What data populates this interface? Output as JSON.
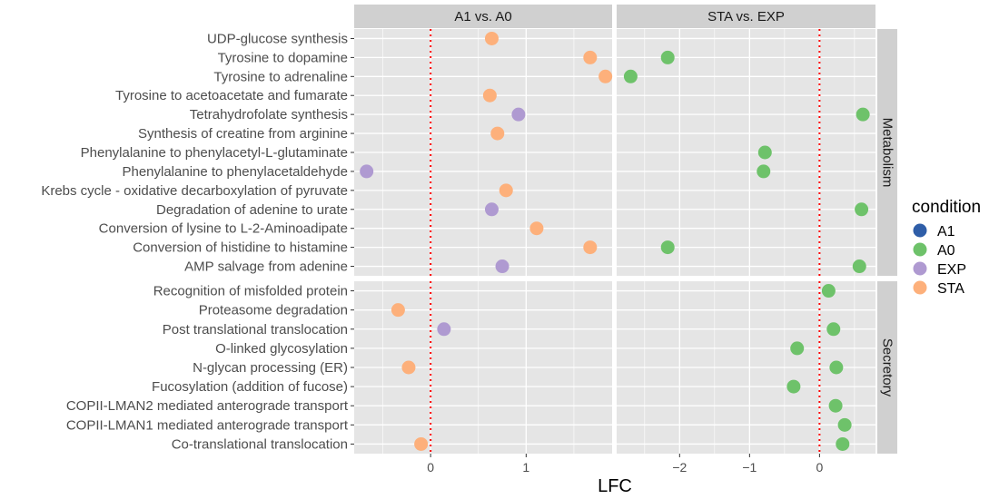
{
  "chart_data": {
    "type": "scatter",
    "xlabel": "LFC",
    "facet_columns": [
      "A1 vs. A0",
      "STA vs. EXP"
    ],
    "facet_rows": [
      "Metabolism",
      "Secretory"
    ],
    "x_ticks": [
      [
        0,
        1
      ],
      [
        -2,
        -1,
        0
      ]
    ],
    "x_ranges": [
      [
        -0.8,
        1.9
      ],
      [
        -2.9,
        0.8
      ]
    ],
    "reference_line_x": 0,
    "grid": true,
    "legend": {
      "title": "condition",
      "position": "right",
      "entries": [
        {
          "name": "A1",
          "color": "#2f5ea8"
        },
        {
          "name": "A0",
          "color": "#6ec26a"
        },
        {
          "name": "EXP",
          "color": "#af9ad1"
        },
        {
          "name": "STA",
          "color": "#fdb07b"
        }
      ]
    },
    "rows": [
      {
        "facet": "Metabolism",
        "categories": [
          "UDP-glucose synthesis",
          "Tyrosine to dopamine",
          "Tyrosine to adrenaline",
          "Tyrosine to acetoacetate and fumarate",
          "Tetrahydrofolate synthesis",
          "Synthesis of creatine from arginine",
          "Phenylalanine to phenylacetyl-L-glutaminate",
          "Phenylalanine to phenylacetaldehyde",
          "Krebs cycle - oxidative decarboxylation of pyruvate",
          "Degradation of adenine to urate",
          "Conversion of lysine to L-2-Aminoadipate",
          "Conversion of histidine to histamine",
          "AMP salvage from adenine"
        ],
        "points": [
          {
            "col": 0,
            "y": "UDP-glucose synthesis",
            "x": 0.64,
            "condition": "STA"
          },
          {
            "col": 0,
            "y": "Tyrosine to dopamine",
            "x": 1.67,
            "condition": "STA"
          },
          {
            "col": 0,
            "y": "Tyrosine to adrenaline",
            "x": 1.83,
            "condition": "STA"
          },
          {
            "col": 0,
            "y": "Tyrosine to acetoacetate and fumarate",
            "x": 0.62,
            "condition": "STA"
          },
          {
            "col": 0,
            "y": "Tetrahydrofolate synthesis",
            "x": 0.92,
            "condition": "EXP"
          },
          {
            "col": 0,
            "y": "Synthesis of creatine from arginine",
            "x": 0.7,
            "condition": "STA"
          },
          {
            "col": 0,
            "y": "Phenylalanine to phenylacetaldehyde",
            "x": -0.67,
            "condition": "EXP"
          },
          {
            "col": 0,
            "y": "Krebs cycle - oxidative decarboxylation of pyruvate",
            "x": 0.79,
            "condition": "STA"
          },
          {
            "col": 0,
            "y": "Degradation of adenine to urate",
            "x": 0.64,
            "condition": "EXP"
          },
          {
            "col": 0,
            "y": "Conversion of lysine to L-2-Aminoadipate",
            "x": 1.11,
            "condition": "STA"
          },
          {
            "col": 0,
            "y": "Conversion of histidine to histamine",
            "x": 1.67,
            "condition": "STA"
          },
          {
            "col": 0,
            "y": "AMP salvage from adenine",
            "x": 0.75,
            "condition": "EXP"
          },
          {
            "col": 1,
            "y": "Tyrosine to dopamine",
            "x": -2.17,
            "condition": "A0"
          },
          {
            "col": 1,
            "y": "Tyrosine to adrenaline",
            "x": -2.7,
            "condition": "A0"
          },
          {
            "col": 1,
            "y": "Tetrahydrofolate synthesis",
            "x": 0.62,
            "condition": "A0"
          },
          {
            "col": 1,
            "y": "Phenylalanine to phenylacetyl-L-glutaminate",
            "x": -0.78,
            "condition": "A0"
          },
          {
            "col": 1,
            "y": "Phenylalanine to phenylacetaldehyde",
            "x": -0.8,
            "condition": "A0"
          },
          {
            "col": 1,
            "y": "Degradation of adenine to urate",
            "x": 0.6,
            "condition": "A0"
          },
          {
            "col": 1,
            "y": "Conversion of histidine to histamine",
            "x": -2.17,
            "condition": "A0"
          },
          {
            "col": 1,
            "y": "AMP salvage from adenine",
            "x": 0.57,
            "condition": "A0"
          }
        ]
      },
      {
        "facet": "Secretory",
        "categories": [
          "Recognition of misfolded protein",
          "Proteasome degradation",
          "Post translational translocation",
          "O-linked glycosylation",
          "N-glycan processing (ER)",
          "Fucosylation (addition of fucose)",
          "COPII-LMAN2 mediated anterograde transport",
          "COPII-LMAN1 mediated anterograde transport",
          "Co-translational translocation"
        ],
        "points": [
          {
            "col": 0,
            "y": "Proteasome degradation",
            "x": -0.34,
            "condition": "STA"
          },
          {
            "col": 0,
            "y": "Post translational translocation",
            "x": 0.14,
            "condition": "EXP"
          },
          {
            "col": 0,
            "y": "N-glycan processing (ER)",
            "x": -0.23,
            "condition": "STA"
          },
          {
            "col": 0,
            "y": "Co-translational translocation",
            "x": -0.1,
            "condition": "STA"
          },
          {
            "col": 1,
            "y": "Recognition of misfolded protein",
            "x": 0.13,
            "condition": "A0"
          },
          {
            "col": 1,
            "y": "Post translational translocation",
            "x": 0.2,
            "condition": "A0"
          },
          {
            "col": 1,
            "y": "O-linked glycosylation",
            "x": -0.32,
            "condition": "A0"
          },
          {
            "col": 1,
            "y": "N-glycan processing (ER)",
            "x": 0.24,
            "condition": "A0"
          },
          {
            "col": 1,
            "y": "Fucosylation (addition of fucose)",
            "x": -0.37,
            "condition": "A0"
          },
          {
            "col": 1,
            "y": "COPII-LMAN2 mediated anterograde transport",
            "x": 0.23,
            "condition": "A0"
          },
          {
            "col": 1,
            "y": "COPII-LMAN1 mediated anterograde transport",
            "x": 0.36,
            "condition": "A0"
          },
          {
            "col": 1,
            "y": "Co-translational translocation",
            "x": 0.33,
            "condition": "A0"
          }
        ]
      }
    ]
  }
}
